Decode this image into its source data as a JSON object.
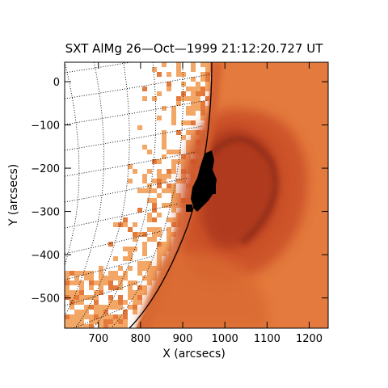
{
  "title": "SXT AlMg 26—Oct—1999 21:12:20.727 UT",
  "axes": {
    "xlabel": "X (arcsecs)",
    "ylabel": "Y (arcsecs)",
    "x_ticks": [
      "700",
      "800",
      "900",
      "1000",
      "1100",
      "1200"
    ],
    "y_ticks": [
      "0",
      "−100",
      "−200",
      "−300",
      "−400",
      "−500"
    ]
  },
  "colors": {
    "pale": "#f3a766",
    "mid": "#e4793c",
    "deep": "#c44a24",
    "dark": "#8a2814",
    "core": "#000000",
    "grid": "#000000"
  },
  "x_range": [
    620,
    1245
  ],
  "y_range": [
    -570,
    45
  ]
}
